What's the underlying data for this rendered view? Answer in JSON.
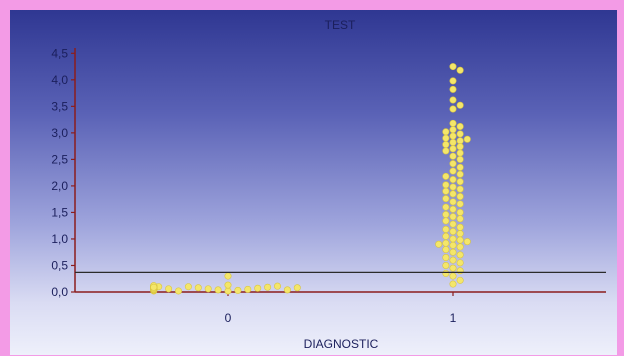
{
  "chart_data": {
    "type": "scatter",
    "title": "TEST",
    "xlabel": "DIAGNOSTIC",
    "ylabel": "",
    "categories": [
      "0",
      "1"
    ],
    "y_ticks": [
      "0,0",
      "0,5",
      "1,0",
      "1,5",
      "2,0",
      "2,5",
      "3,0",
      "3,5",
      "4,0",
      "4,5"
    ],
    "ylim": [
      0,
      4.6
    ],
    "threshold": 0.37,
    "grid": false,
    "colors": {
      "points": "#f4e66a",
      "axis": "#8b1d1d",
      "threshold_line": "#2b2b2b",
      "text": "#1b1f5c"
    },
    "series": [
      {
        "category": "0",
        "values": [
          0.02,
          0.03,
          0.04,
          0.05,
          0.06,
          0.07,
          0.08,
          0.09,
          0.1,
          0.11,
          0.02,
          0.04,
          0.06,
          0.08,
          0.1,
          0.03,
          0.05,
          0.07,
          0.09,
          0.11,
          0.02,
          0.04,
          0.06,
          0.08,
          0.1,
          0.03,
          0.05,
          0.07,
          0.09,
          0.11,
          0.04,
          0.06,
          0.08,
          0.1,
          0.12,
          0.05,
          0.07,
          0.09,
          0.13,
          0.3
        ]
      },
      {
        "category": "1",
        "values": [
          4.25,
          4.18,
          3.98,
          3.82,
          3.62,
          3.52,
          3.45,
          3.18,
          3.12,
          3.06,
          3.02,
          2.98,
          2.94,
          2.9,
          2.88,
          2.85,
          2.82,
          2.78,
          2.74,
          2.7,
          2.66,
          2.62,
          2.56,
          2.5,
          2.42,
          2.35,
          2.28,
          2.22,
          2.18,
          2.12,
          2.08,
          2.02,
          1.98,
          1.94,
          1.9,
          1.85,
          1.8,
          1.76,
          1.7,
          1.66,
          1.6,
          1.56,
          1.5,
          1.46,
          1.42,
          1.38,
          1.34,
          1.28,
          1.22,
          1.18,
          1.14,
          1.1,
          1.05,
          1.0,
          0.98,
          0.95,
          0.92,
          0.9,
          0.88,
          0.85,
          0.8,
          0.75,
          0.7,
          0.65,
          0.6,
          0.55,
          0.5,
          0.45,
          0.4,
          0.35,
          0.3,
          0.22,
          0.15
        ]
      }
    ]
  }
}
